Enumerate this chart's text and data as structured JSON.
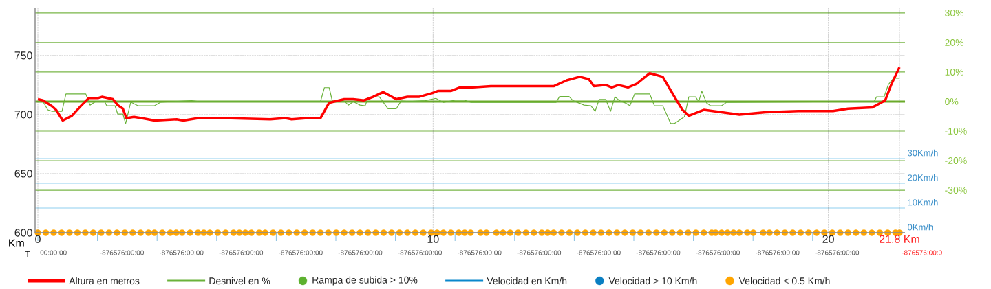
{
  "chart_data": {
    "type": "line",
    "xlabel": "Km",
    "x2label": "T",
    "xlim": [
      -0.07,
      21.94
    ],
    "xticks": [
      0,
      10,
      20,
      {
        "value": 21.8,
        "label": "21.8 Km"
      }
    ],
    "annotations": [
      "00:00:00",
      "-876576:00:00",
      "-876576:00:00",
      "-876576:00:00",
      "-876576:00:00",
      "-876576:00:00",
      "-876576:00:00",
      "-876576:00:00",
      "-876576:00:00",
      "-876576:00:00",
      "-876576:00:00",
      "-876576:00:00",
      "-876576:00:00",
      "-876576:00:00",
      "-876576:00:0"
    ],
    "ylim": [
      600,
      790
    ],
    "yticks": [
      600,
      650,
      700,
      750
    ],
    "y2lim": [
      -44.4,
      31.6
    ],
    "y2ticks": [
      {
        "value": 30,
        "label": "30%"
      },
      {
        "value": 20,
        "label": "20%"
      },
      {
        "value": 10,
        "label": "10%"
      },
      {
        "value": 0,
        "label": "0%"
      },
      {
        "value": -10,
        "label": "-10%"
      },
      {
        "value": -20,
        "label": "-20%"
      },
      {
        "value": -30,
        "label": "-30%"
      }
    ],
    "y3lim": [
      0,
      90.8
    ],
    "y3ticks": [
      {
        "value": 30,
        "label": "30Km/h"
      },
      {
        "value": 20,
        "label": "20Km/h"
      },
      {
        "value": 10,
        "label": "10Km/h"
      },
      {
        "value": 0,
        "label": "0Km/h"
      }
    ],
    "grid": true,
    "legend": "bottom",
    "ref_lines": [
      {
        "axis": "y2",
        "value": 0,
        "color": "#6aaa2a"
      }
    ],
    "series": [
      {
        "name": "Altura en metros",
        "color": "#ff0000",
        "x": [
          0,
          0.13,
          0.36,
          0.46,
          0.63,
          0.86,
          1.08,
          1.29,
          1.52,
          1.62,
          1.9,
          2.02,
          2.15,
          2.24,
          2.43,
          2.62,
          2.95,
          3.51,
          3.68,
          4.06,
          4.72,
          5.88,
          6.26,
          6.42,
          6.82,
          7.15,
          7.37,
          7.75,
          7.98,
          8.25,
          8.48,
          8.74,
          9.07,
          9.35,
          9.64,
          9.97,
          10.13,
          10.46,
          10.68,
          11.01,
          11.46,
          13.05,
          13.38,
          13.71,
          13.94,
          14.07,
          14.37,
          14.52,
          14.69,
          14.93,
          15.15,
          15.48,
          15.81,
          16.09,
          16.31,
          16.47,
          16.85,
          17.3,
          17.75,
          18.41,
          19.24,
          19.78,
          20.12,
          20.5,
          21.11,
          21.44,
          21.6,
          21.8
        ],
        "values": [
          713,
          712,
          707,
          704,
          695,
          699,
          707,
          714,
          714,
          715,
          713,
          708,
          705,
          697,
          698,
          697,
          695,
          696,
          695,
          697,
          697,
          696,
          697,
          696,
          697,
          697,
          710,
          713,
          713,
          712,
          715,
          719,
          713,
          715,
          715,
          718,
          720,
          720,
          723,
          723,
          724,
          724,
          729,
          732,
          730,
          724,
          725,
          723,
          725,
          723,
          726,
          735,
          732,
          716,
          704,
          699,
          704,
          702,
          700,
          702,
          703,
          703,
          703,
          705,
          706,
          712,
          726,
          740
        ]
      },
      {
        "name": "Desnivel en %",
        "axis": "y2",
        "color": "#6ab23a",
        "x": [
          0,
          0.13,
          0.25,
          0.36,
          0.61,
          0.71,
          1.21,
          1.32,
          1.46,
          1.69,
          1.74,
          1.95,
          2.02,
          2.15,
          2.22,
          2.35,
          2.53,
          2.95,
          3.11,
          3.89,
          4.06,
          7.15,
          7.25,
          7.37,
          7.45,
          7.75,
          7.86,
          7.98,
          8.15,
          8.28,
          8.36,
          8.64,
          8.86,
          9.07,
          9.19,
          9.4,
          9.8,
          10.07,
          10.26,
          10.56,
          10.79,
          10.96,
          13.11,
          13.2,
          13.44,
          13.54,
          13.82,
          13.99,
          14.1,
          14.2,
          14.37,
          14.49,
          14.6,
          14.73,
          14.87,
          14.98,
          15.1,
          15.48,
          15.6,
          15.81,
          16.01,
          16.11,
          16.36,
          16.47,
          16.64,
          16.72,
          16.8,
          16.92,
          17.02,
          17.3,
          17.42,
          21.16,
          21.22,
          21.41,
          21.52,
          21.65,
          21.8
        ],
        "values": [
          0,
          0,
          -2.8,
          -3.3,
          -3.3,
          2.6,
          2.6,
          -1.2,
          0,
          0,
          -1.4,
          -1.4,
          -4.2,
          -4.2,
          -7.4,
          -0.2,
          -1.4,
          -1.4,
          -0.2,
          0.3,
          0,
          0,
          4.7,
          4.7,
          0.2,
          0.2,
          -1.2,
          0,
          -1.2,
          -1.4,
          1.4,
          1.6,
          -2.4,
          -2.4,
          0.2,
          0,
          0.3,
          1.1,
          -0.3,
          0.5,
          0.5,
          -0.3,
          -0.3,
          1.7,
          1.7,
          0.3,
          -1.2,
          -1.4,
          -3.3,
          0.7,
          0.7,
          -3.3,
          1.6,
          0.2,
          -0.5,
          -1.4,
          2.6,
          2.6,
          -1.4,
          -1.4,
          -7.4,
          -7.4,
          -5.1,
          1.6,
          1.6,
          0,
          3.5,
          -0.5,
          -1.4,
          -1.4,
          -0.3,
          0,
          1.6,
          1.6,
          5.8,
          7.9,
          7.9
        ]
      },
      {
        "name": "Rampa de subida > 10%",
        "type": "scatter",
        "axis": "y2",
        "marker": "circle",
        "color": "#5db12f"
      },
      {
        "name": "Velocidad en Km/h",
        "axis": "y3",
        "color": "#0a88cc"
      },
      {
        "name": "Velocidad > 10 Km/h",
        "type": "scatter",
        "axis": "y3",
        "marker": "circle",
        "color": "#0a7fc2"
      },
      {
        "name": "Velocidad < 0.5 Km/h",
        "type": "scatter",
        "axis": "y3",
        "marker": "circle",
        "color": "#ffa500",
        "x": [
          0,
          0.2,
          0.4,
          0.6,
          0.8,
          1,
          1.2,
          1.4,
          1.6,
          1.8,
          2,
          2.2,
          2.4,
          2.6,
          2.8,
          2.95,
          3.15,
          3.35,
          3.5,
          3.65,
          3.85,
          4.05,
          4.2,
          4.35,
          4.55,
          4.75,
          4.95,
          5.1,
          5.25,
          5.4,
          5.6,
          5.75,
          5.95,
          6.15,
          6.35,
          6.55,
          6.75,
          6.95,
          7.15,
          7.35,
          7.55,
          7.75,
          7.95,
          8.15,
          8.35,
          8.55,
          8.75,
          8.95,
          9.15,
          9.35,
          9.55,
          9.75,
          9.95,
          10.1,
          10.26,
          10.45,
          10.65,
          10.8,
          10.95,
          11.2,
          11.35,
          11.6,
          11.77,
          11.95,
          12.15,
          12.35,
          12.55,
          12.75,
          12.9,
          13.05,
          13.25,
          13.45,
          13.65,
          13.85,
          14.05,
          14.25,
          14.45,
          14.65,
          14.85,
          15.05,
          15.25,
          15.45,
          15.65,
          15.85,
          16.05,
          16.25,
          16.45,
          16.65,
          16.85,
          17.05,
          17.15,
          17.3,
          17.45,
          17.6,
          17.75,
          17.95,
          18.1,
          18.35,
          18.51,
          18.7,
          18.9,
          19.1,
          19.3,
          19.5,
          19.7,
          19.9,
          20.1,
          20.3,
          20.5,
          20.7,
          20.9,
          21.1,
          21.3,
          21.5,
          21.7,
          21.8
        ],
        "values": [
          0,
          0,
          0,
          0,
          0,
          0,
          0,
          0,
          0,
          0,
          0,
          0,
          0,
          0,
          0,
          0,
          0,
          0,
          0,
          0,
          0,
          0,
          0,
          0,
          0,
          0,
          0,
          0,
          0,
          0,
          0,
          0,
          0,
          0,
          0,
          0,
          0,
          0,
          0,
          0,
          0,
          0,
          0,
          0,
          0,
          0,
          0,
          0,
          0,
          0,
          0,
          0,
          0,
          0,
          0,
          0,
          0,
          0,
          0,
          0,
          0,
          0,
          0,
          0,
          0,
          0,
          0,
          0,
          0,
          0,
          0,
          0,
          0,
          0,
          0,
          0,
          0,
          0,
          0,
          0,
          0,
          0,
          0,
          0,
          0,
          0,
          0,
          0,
          0,
          0,
          0,
          0,
          0,
          0,
          0,
          0,
          0,
          0,
          0,
          0,
          0,
          0,
          0,
          0,
          0,
          0,
          0,
          0,
          0,
          0,
          0,
          0,
          0,
          0,
          0,
          0
        ]
      }
    ]
  }
}
